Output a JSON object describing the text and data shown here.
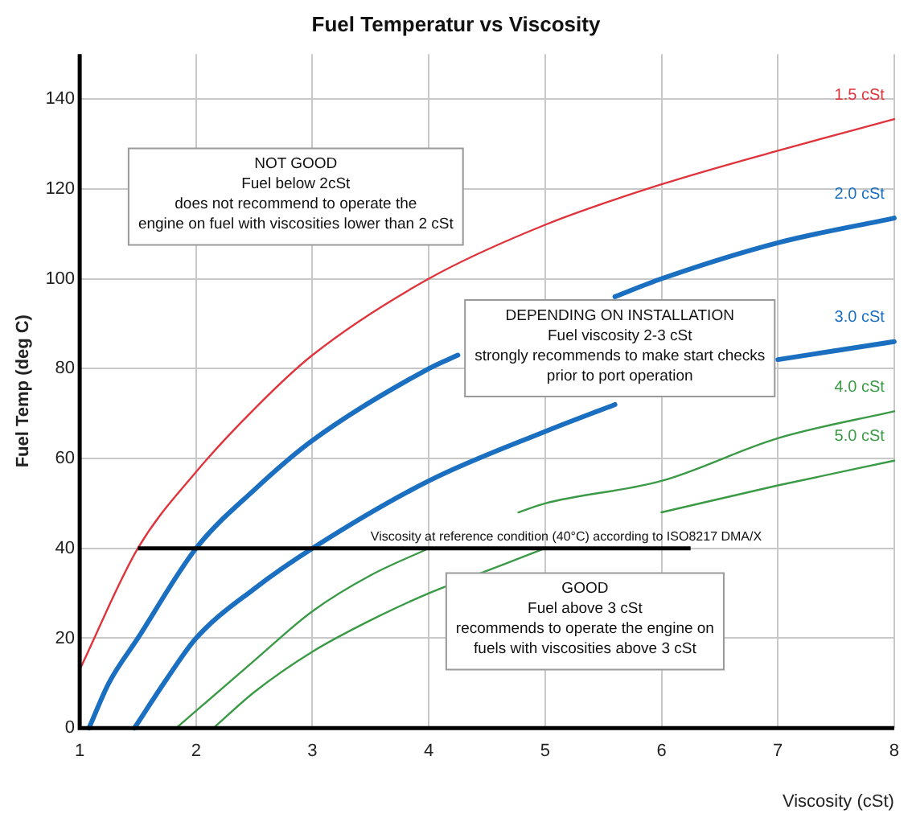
{
  "chart_data": {
    "type": "line",
    "title": "Fuel Temperatur vs Viscosity",
    "xlabel": "Viscosity (cSt)",
    "ylabel": "Fuel Temp (deg C)",
    "xlim": [
      1,
      8
    ],
    "xticks": [
      1,
      2,
      3,
      4,
      5,
      6,
      7,
      8
    ],
    "ylim": [
      0,
      150
    ],
    "yticks": [
      0,
      20,
      40,
      60,
      80,
      100,
      120,
      140
    ],
    "grid": true,
    "legend": false,
    "marker": "none",
    "line_style": "solid",
    "series": [
      {
        "name": "1.5 cSt",
        "color": "#e0343c",
        "x": [
          1,
          1.5,
          2,
          2.5,
          3,
          4,
          5,
          6,
          7,
          8
        ],
        "values": [
          13,
          40,
          57,
          71,
          83,
          100,
          112,
          121,
          128.5,
          135.5
        ]
      },
      {
        "name": "2.0 cSt",
        "color": "#1a6fc0",
        "x": [
          1.08,
          1.25,
          1.5,
          2,
          2.5,
          3,
          4,
          4.25,
          5,
          5.6,
          6,
          7,
          8
        ],
        "values": [
          0,
          10,
          20,
          40,
          53,
          64,
          80,
          83,
          null,
          96,
          100,
          108,
          113.5
        ]
      },
      {
        "name": "3.0 cSt",
        "color": "#1a6fc0",
        "x": [
          1.47,
          1.75,
          2,
          2.5,
          3,
          4,
          5,
          5.6,
          6.3,
          7,
          8
        ],
        "values": [
          0,
          11,
          20,
          31,
          40,
          55,
          66,
          72,
          null,
          82,
          86
        ]
      },
      {
        "name": "4.0 cSt",
        "color": "#3a9a45",
        "x": [
          1.83,
          2.5,
          3,
          3.5,
          4,
          4.4,
          4.77,
          5,
          6,
          7,
          8
        ],
        "values": [
          0,
          15,
          26,
          34,
          40,
          null,
          48,
          50,
          55,
          64.5,
          70.5
        ]
      },
      {
        "name": "5.0 cSt",
        "color": "#3a9a45",
        "x": [
          2.15,
          2.5,
          3,
          3.5,
          4,
          4.5,
          5,
          5.5,
          6,
          7,
          8
        ],
        "values": [
          0,
          8,
          17,
          24,
          30,
          35,
          40,
          null,
          48,
          54,
          59.5
        ]
      }
    ],
    "ref_lines": [
      {
        "axis": "y",
        "value": 40,
        "label": "Viscosity at reference condition (40°C) according to ISO8217 DMA/X",
        "color": "#000000"
      }
    ],
    "annotations": [
      "NOT GOOD\nFuel below 2cSt\ndoes not recommend to operate the\nengine on fuel with viscosities lower than 2 cSt",
      "DEPENDING ON INSTALLATION\nFuel viscosity 2-3 cSt\nstrongly recommends to make start checks\nprior to port operation",
      "GOOD\nFuel above 3 cSt\nrecommends to operate the engine on\nfuels with viscosities above 3 cSt"
    ]
  }
}
